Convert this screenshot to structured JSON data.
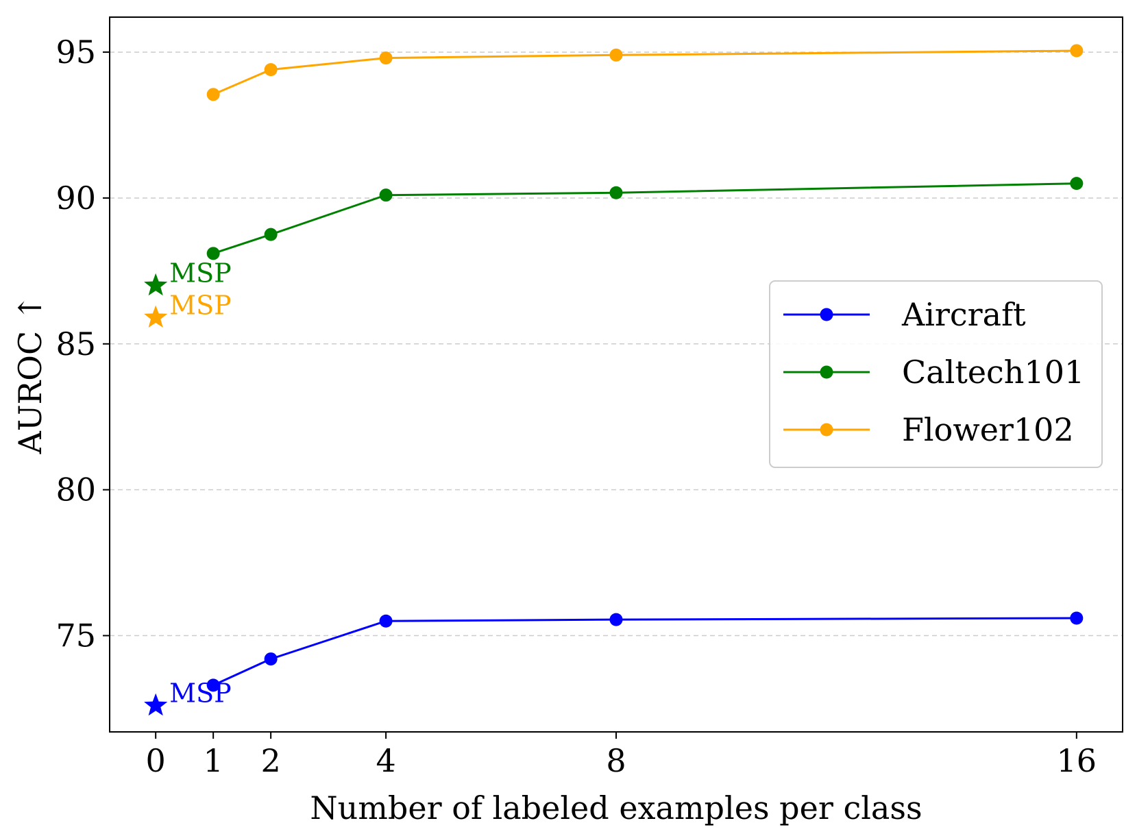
{
  "chart_data": {
    "type": "line",
    "title": "",
    "xlabel": "Number of labeled examples per class",
    "ylabel": "AUROC ↑",
    "x": [
      1,
      2,
      4,
      8,
      16
    ],
    "xticks": [
      0,
      1,
      2,
      4,
      8,
      16
    ],
    "xtick_labels": [
      "0",
      "1",
      "2",
      "4",
      "8",
      "16"
    ],
    "xlim": [
      -0.8,
      16.8
    ],
    "yticks": [
      75,
      80,
      85,
      90,
      95
    ],
    "ytick_labels": [
      "75",
      "80",
      "85",
      "90",
      "95"
    ],
    "ylim": [
      71.7,
      96.2
    ],
    "grid": "y-dashed",
    "legend_position": "center-right",
    "series": [
      {
        "name": "Aircraft",
        "color": "#0000ff",
        "values": [
          73.3,
          74.2,
          75.5,
          75.55,
          75.6
        ],
        "msp": 72.6,
        "msp_label": "MSP"
      },
      {
        "name": "Caltech101",
        "color": "#008000",
        "values": [
          88.1,
          88.75,
          90.1,
          90.18,
          90.5
        ],
        "msp": 87.0,
        "msp_label": "MSP"
      },
      {
        "name": "Flower102",
        "color": "#ffa500",
        "values": [
          93.55,
          94.4,
          94.8,
          94.9,
          95.05
        ],
        "msp": 85.9,
        "msp_label": "MSP"
      }
    ]
  }
}
